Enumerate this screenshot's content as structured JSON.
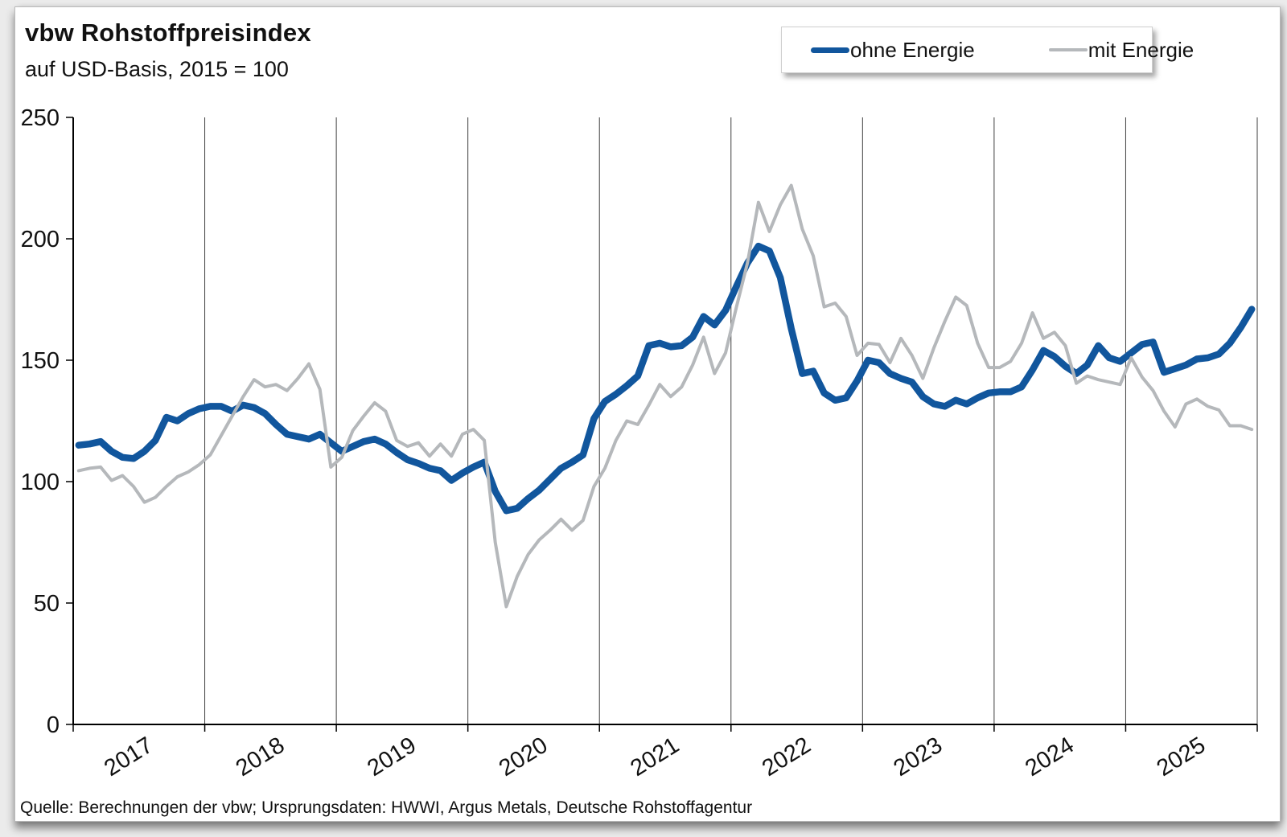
{
  "header": {
    "title": "vbw Rohstoffpreisindex",
    "subtitle": "auf USD-Basis, 2015 = 100"
  },
  "footer": {
    "source": "Quelle: Berechnungen der vbw; Ursprungsdaten: HWWI, Argus Metals, Deutsche Rohstoffagentur"
  },
  "chart_data": {
    "type": "line",
    "title": "vbw Rohstoffpreisindex",
    "subtitle": "auf USD-Basis, 2015 = 100",
    "frequency": "monthly",
    "x_start": "2017-01",
    "x_end": "2025-12",
    "x_tick_labels": [
      "2017",
      "2018",
      "2019",
      "2020",
      "2021",
      "2022",
      "2023",
      "2024",
      "2025"
    ],
    "ylim": [
      0,
      250
    ],
    "y_ticks": [
      0,
      50,
      100,
      150,
      200,
      250
    ],
    "grid": "vertical-year-lines-only",
    "legend_position": "top-right",
    "axis_color": "#000000",
    "gridline_color": "#3f3f3f",
    "series": [
      {
        "name": "ohne Energie",
        "color": "#11569d",
        "stroke_width": 8.5,
        "values": [
          115,
          115.5,
          116.5,
          112.5,
          110,
          109.5,
          112.5,
          117,
          126.5,
          125,
          128,
          130,
          131,
          131,
          129,
          131.5,
          130.5,
          128,
          123.5,
          119.5,
          118.5,
          117.5,
          119.5,
          116,
          112.5,
          114.5,
          116.5,
          117.5,
          115.5,
          112,
          109,
          107.5,
          105.5,
          104.5,
          100.5,
          103.5,
          106,
          108,
          96,
          88,
          89,
          93,
          96.5,
          101,
          105.5,
          108,
          111,
          126,
          133,
          136,
          139.5,
          143.5,
          156,
          157,
          155.5,
          156,
          159.5,
          168,
          164.5,
          170.5,
          180.5,
          190,
          197,
          195,
          184,
          163,
          144.5,
          145.5,
          136.5,
          133.5,
          134.5,
          141.5,
          150,
          149,
          144.5,
          142.5,
          141,
          135,
          132,
          131,
          133.5,
          132,
          134.5,
          136.5,
          137,
          137,
          139,
          146,
          154,
          151.5,
          147.5,
          144.5,
          148,
          156,
          151,
          149.5,
          153,
          156.5,
          157.5,
          145,
          146.5,
          148,
          150.5,
          151,
          152.5,
          157,
          163.5,
          171
        ]
      },
      {
        "name": "mit Energie",
        "color": "#b5b8bb",
        "stroke_width": 4,
        "values": [
          104.5,
          105.5,
          106,
          100.5,
          102.5,
          98,
          91.5,
          93.5,
          98,
          102,
          104,
          107,
          111,
          119,
          127,
          135,
          142,
          139,
          140,
          137.5,
          142.5,
          148.5,
          138,
          106,
          110,
          121,
          127,
          132.5,
          129,
          117,
          114.5,
          116,
          110.5,
          115.5,
          110.5,
          119.5,
          121.5,
          117,
          75,
          48.5,
          61,
          70,
          76,
          80,
          84.5,
          80,
          84,
          98,
          105.5,
          117,
          125,
          123.5,
          131.5,
          140,
          135,
          139,
          148,
          159.5,
          144.5,
          153,
          172,
          190,
          215,
          203,
          214,
          222,
          204,
          193,
          172,
          173.5,
          168,
          152,
          157,
          156.5,
          149,
          159,
          152,
          142.5,
          155,
          166,
          176,
          172.5,
          157,
          147,
          147,
          149.5,
          157,
          169.5,
          159,
          161.5,
          156,
          140.5,
          143.5,
          142,
          141,
          140,
          151,
          143,
          137.5,
          129,
          122.5,
          132,
          134,
          131,
          129.5,
          123,
          123,
          121.5
        ]
      }
    ]
  }
}
